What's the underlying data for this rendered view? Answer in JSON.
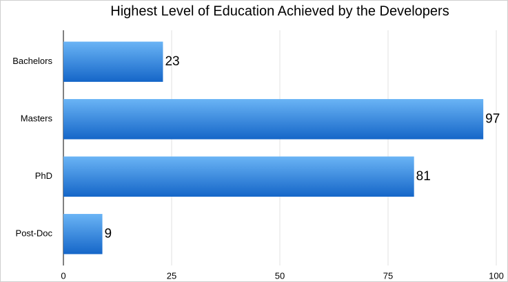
{
  "chart_data": {
    "type": "bar",
    "orientation": "horizontal",
    "title": "Highest Level of Education Achieved by the Developers",
    "categories": [
      "Bachelors",
      "Masters",
      "PhD",
      "Post-Doc"
    ],
    "values": [
      23,
      97,
      81,
      9
    ],
    "color": "#1566c8",
    "xlim": [
      0,
      100
    ],
    "xticks": [
      0,
      25,
      50,
      75,
      100
    ],
    "grid": true
  }
}
